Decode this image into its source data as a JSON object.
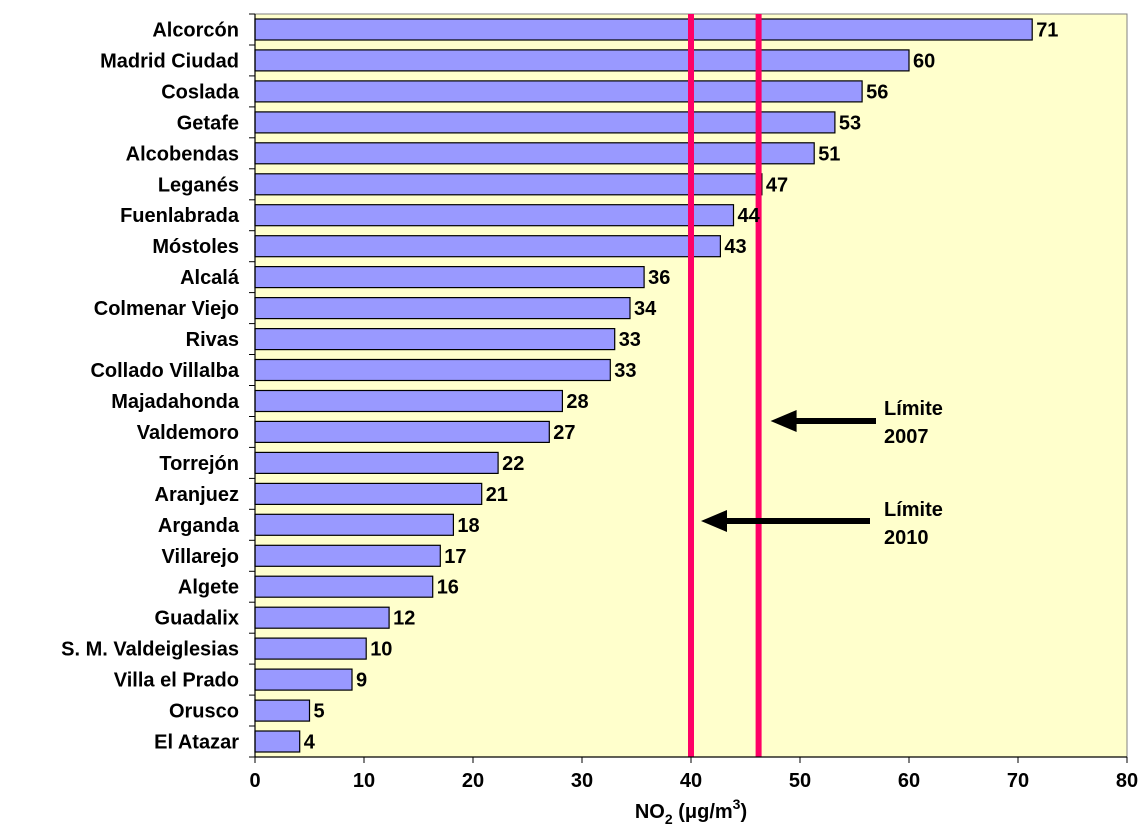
{
  "chart_data": {
    "type": "bar",
    "orientation": "horizontal",
    "categories": [
      "Alcorcón",
      "Madrid Ciudad",
      "Coslada",
      "Getafe",
      "Alcobendas",
      "Leganés",
      "Fuenlabrada",
      "Móstoles",
      "Alcalá",
      "Colmenar Viejo",
      "Rivas",
      "Collado Villalba",
      "Majadahonda",
      "Valdemoro",
      "Torrejón",
      "Aranjuez",
      "Arganda",
      "Villarejo",
      "Algete",
      "Guadalix",
      "S. M. Valdeiglesias",
      "Villa el Prado",
      "Orusco",
      "El Atazar"
    ],
    "values": [
      71,
      60,
      56,
      53,
      51,
      47,
      44,
      43,
      36,
      34,
      33,
      33,
      28,
      27,
      22,
      21,
      18,
      17,
      16,
      12,
      10,
      9,
      5,
      4
    ],
    "bar_values_precise": [
      71.3,
      60.0,
      55.7,
      53.2,
      51.3,
      46.5,
      43.9,
      42.7,
      35.7,
      34.4,
      33.0,
      32.6,
      28.2,
      27.0,
      22.3,
      20.8,
      18.2,
      17.0,
      16.3,
      12.3,
      10.2,
      8.9,
      5.0,
      4.1
    ],
    "xlabel_main": "NO",
    "xlabel_sub": "2",
    "xlabel_unit_pre": " (μg/m",
    "xlabel_unit_sup": "3",
    "xlabel_unit_post": ")",
    "xlim": [
      0,
      80
    ],
    "xticks": [
      0,
      10,
      20,
      30,
      40,
      50,
      60,
      70,
      80
    ],
    "grid": false,
    "limit_lines": [
      {
        "value": 46.2,
        "label_line1": "Límite",
        "label_line2": "2007"
      },
      {
        "value": 40,
        "label_line1": "Límite",
        "label_line2": "2010"
      }
    ],
    "colors": {
      "bar_fill": "#9999ff",
      "bar_stroke": "#000000",
      "plot_background": "#ffffcc",
      "limit_line": "#ff0066",
      "arrow": "#000000"
    }
  }
}
